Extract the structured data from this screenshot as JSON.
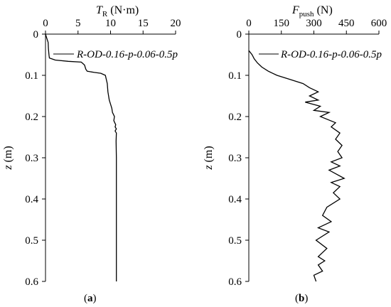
{
  "chart_data": [
    {
      "type": "line",
      "panel_label": "(a)",
      "x_axis_position": "top",
      "xlabel": "T",
      "xlabel_sub": "R",
      "xlabel_unit": " (N·m)",
      "ylabel": "z",
      "ylabel_unit": " (m)",
      "xlim": [
        0,
        20
      ],
      "ylim": [
        0,
        0.6
      ],
      "y_inverted": true,
      "xticks": [
        "0",
        "5",
        "10",
        "15",
        "20"
      ],
      "xtick_values": [
        0,
        5,
        10,
        15,
        20
      ],
      "yticks": [
        "0",
        "0.1",
        "0.2",
        "0.3",
        "0.4",
        "0.5",
        "0.6"
      ],
      "ytick_values": [
        0,
        0.1,
        0.2,
        0.3,
        0.4,
        0.5,
        0.6
      ],
      "grid": false,
      "legend_placement": "top-right",
      "series": [
        {
          "name": "R-OD-0.16-p-0.06-0.5p",
          "x": [
            0,
            0.2,
            0.4,
            0.45,
            0.5,
            0.55,
            0.6,
            1.5,
            3.5,
            5.5,
            6.0,
            6.2,
            6.4,
            7.5,
            8.5,
            9.2,
            9.5,
            9.6,
            9.8,
            10.0,
            10.2,
            10.3,
            10.6,
            10.5,
            10.8,
            10.7,
            10.9,
            10.7,
            10.9,
            10.85,
            10.9,
            10.9,
            10.9,
            10.9
          ],
          "y": [
            0,
            0.01,
            0.02,
            0.035,
            0.045,
            0.052,
            0.058,
            0.063,
            0.066,
            0.068,
            0.075,
            0.085,
            0.09,
            0.093,
            0.095,
            0.1,
            0.12,
            0.14,
            0.16,
            0.17,
            0.18,
            0.19,
            0.2,
            0.21,
            0.22,
            0.225,
            0.23,
            0.235,
            0.24,
            0.26,
            0.3,
            0.4,
            0.5,
            0.6
          ]
        }
      ]
    },
    {
      "type": "line",
      "panel_label": "(b)",
      "x_axis_position": "top",
      "xlabel": "F",
      "xlabel_sub": "push",
      "xlabel_unit": " (N)",
      "ylabel": "z",
      "ylabel_unit": " (m)",
      "xlim": [
        0,
        600
      ],
      "ylim": [
        0,
        0.6
      ],
      "y_inverted": true,
      "xticks": [
        "0",
        "150",
        "300",
        "450",
        "600"
      ],
      "xtick_values": [
        0,
        150,
        300,
        450,
        600
      ],
      "yticks": [
        "0",
        "0.1",
        "0.2",
        "0.3",
        "0.4",
        "0.5",
        "0.6"
      ],
      "ytick_values": [
        0,
        0.1,
        0.2,
        0.3,
        0.4,
        0.5,
        0.6
      ],
      "grid": false,
      "legend_placement": "top-right",
      "series": [
        {
          "name": "R-OD-0.16-p-0.06-0.5p",
          "x": [
            0,
            15,
            25,
            40,
            60,
            90,
            130,
            190,
            250,
            280,
            300,
            320,
            280,
            320,
            260,
            330,
            300,
            370,
            330,
            400,
            380,
            420,
            400,
            430,
            410,
            430,
            380,
            420,
            370,
            440,
            380,
            420,
            390,
            420,
            360,
            340,
            380,
            320,
            370,
            310,
            360,
            320,
            350,
            320,
            340,
            300,
            310
          ],
          "y": [
            0.04,
            0.05,
            0.06,
            0.07,
            0.08,
            0.09,
            0.1,
            0.11,
            0.12,
            0.13,
            0.135,
            0.14,
            0.15,
            0.16,
            0.165,
            0.175,
            0.185,
            0.19,
            0.2,
            0.215,
            0.225,
            0.24,
            0.255,
            0.27,
            0.285,
            0.3,
            0.31,
            0.32,
            0.33,
            0.35,
            0.36,
            0.37,
            0.385,
            0.4,
            0.42,
            0.44,
            0.455,
            0.47,
            0.48,
            0.5,
            0.52,
            0.54,
            0.55,
            0.56,
            0.575,
            0.585,
            0.6
          ]
        }
      ]
    }
  ]
}
